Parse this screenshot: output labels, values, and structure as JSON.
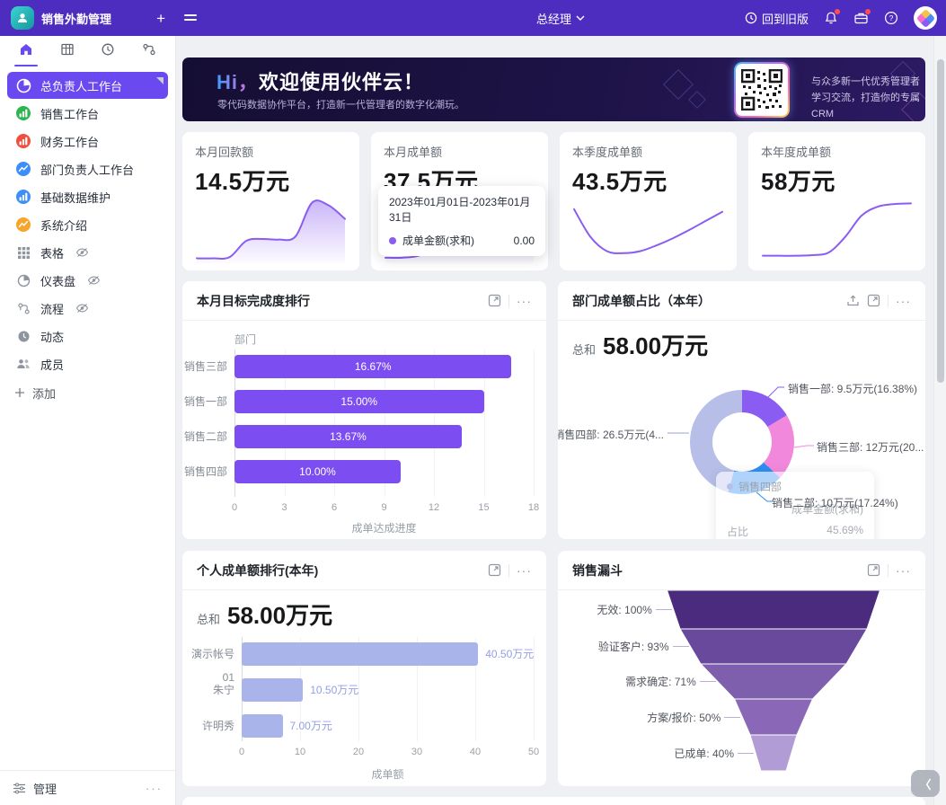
{
  "colors": {
    "topbar": "#4c2dbf",
    "accent": "#6a4af0",
    "bar_purple": "#7c4df0",
    "periwinkle": "#a9b5ea",
    "spark": "#8a5cf0",
    "funnel": [
      "#4a2b7e",
      "#69499c",
      "#7e5fad",
      "#8a67b7",
      "#b29cd6"
    ]
  },
  "topbar": {
    "app_title": "销售外勤管理",
    "plus_label": "+",
    "role": "总经理",
    "back_label": "回到旧版"
  },
  "sidebar": {
    "tabs": [
      {
        "name": "home",
        "active": true
      },
      {
        "name": "table"
      },
      {
        "name": "clock"
      },
      {
        "name": "flow"
      }
    ],
    "items": [
      {
        "label": "总负责人工作台",
        "icon": "pie-white",
        "color": "#6a4af0",
        "active": true
      },
      {
        "label": "销售工作台",
        "icon": "bars",
        "color": "#2fb44f"
      },
      {
        "label": "财务工作台",
        "icon": "bars",
        "color": "#f04f3e"
      },
      {
        "label": "部门负责人工作台",
        "icon": "zigzag",
        "color": "#3e8ef7"
      },
      {
        "label": "基础数据维护",
        "icon": "bars",
        "color": "#3e8ef7"
      },
      {
        "label": "系统介绍",
        "icon": "zigzag",
        "color": "#f7a52d"
      },
      {
        "label": "表格",
        "icon": "grid",
        "gray": true,
        "eye": true
      },
      {
        "label": "仪表盘",
        "icon": "gauge",
        "gray": true,
        "eye": true
      },
      {
        "label": "流程",
        "icon": "flow",
        "gray": true,
        "eye": true
      },
      {
        "label": "动态",
        "icon": "clock",
        "gray": true
      },
      {
        "label": "成员",
        "icon": "users",
        "gray": true
      }
    ],
    "add_label": "添加",
    "manage_label": "管理"
  },
  "banner": {
    "title_hi": "Hi，",
    "title_rest": "欢迎使用伙伴云！",
    "subtitle": "零代码数据协作平台，打造新一代管理者的数字化潮玩。",
    "qr_caption_line1": "与众多新一代优秀管理者",
    "qr_caption_line2": "学习交流，打造你的专属CRM"
  },
  "stat_cards": [
    {
      "title": "本月回款额",
      "value": "14.5万元",
      "spark_type": "area",
      "spark": [
        0.2,
        0.2,
        0.4,
        2.9,
        3.2,
        3.1,
        3.6,
        8.8,
        8.4,
        6.3
      ]
    },
    {
      "title": "本月成单额",
      "value": "37.5万元",
      "spark_type": "area",
      "spark": [
        0.3,
        0.3,
        0.6,
        1.8,
        2.6,
        2.9,
        2.7,
        2.2,
        2.6,
        8.5
      ],
      "tooltip": {
        "date_range": "2023年01月01日-2023年01月31日",
        "series_label": "成单金额(求和)",
        "series_value": "0.00"
      }
    },
    {
      "title": "本季度成单额",
      "value": "43.5万元",
      "spark_type": "line",
      "spark": [
        7.8,
        3.5,
        1.3,
        1.0,
        1.3,
        2.2,
        3.3,
        4.6,
        6.0,
        7.4
      ]
    },
    {
      "title": "本年度成单额",
      "value": "58万元",
      "spark_type": "line",
      "spark": [
        0.6,
        0.6,
        0.6,
        0.7,
        1.1,
        3.5,
        6.8,
        8.2,
        8.6,
        8.7
      ]
    }
  ],
  "chart_data": [
    {
      "id": "monthly_target_ranking",
      "type": "bar",
      "orientation": "horizontal",
      "title": "本月目标完成度排行",
      "ylabel": "部门",
      "xlabel": "成单达成进度",
      "categories": [
        "销售三部",
        "销售一部",
        "销售二部",
        "销售四部"
      ],
      "values": [
        16.67,
        15.0,
        13.67,
        10.0
      ],
      "bar_labels": [
        "16.67%",
        "15.00%",
        "13.67%",
        "10.00%"
      ],
      "xlim": [
        0,
        18
      ],
      "xticks": [
        0,
        3,
        6,
        9,
        12,
        15,
        18
      ],
      "bar_color": "#7c4df0",
      "grid": true
    },
    {
      "id": "dept_share_donut",
      "type": "pie",
      "title": "部门成单额占比（本年）",
      "total_label": "总和",
      "total_value": "58.00万元",
      "slices": [
        {
          "name": "销售一部",
          "value_label": "9.5万元",
          "pct": 16.38,
          "callout": "销售一部: 9.5万元(16.38%)",
          "color": "#8b5cf2"
        },
        {
          "name": "销售三部",
          "value_label": "12万元",
          "pct": 20.69,
          "callout": "销售三部: 12万元(20....",
          "color": "#f288dc"
        },
        {
          "name": "销售二部",
          "value_label": "10万元",
          "pct": 17.24,
          "callout": "销售二部: 10万元(17.24%)",
          "color": "#2e8df2"
        },
        {
          "name": "销售四部",
          "value_label": "26.5万元",
          "pct": 45.69,
          "callout": "销售四部: 26.5万元(4...",
          "color": "#b7bfe9"
        }
      ],
      "tooltip": {
        "title": "销售四部",
        "row1_label": "成单金额(求和)",
        "row2_label": "占比",
        "row2_value": "45.69%"
      }
    },
    {
      "id": "personal_ranking",
      "type": "bar",
      "orientation": "horizontal",
      "title": "个人成单额排行(本年)",
      "total_label": "总和",
      "total_value": "58.00万元",
      "categories": [
        "演示帐号01",
        "朱宁",
        "许明秀"
      ],
      "values": [
        40.5,
        10.5,
        7
      ],
      "value_labels": [
        "40.50万元",
        "10.50万元",
        "7.00万元"
      ],
      "xlim": [
        0,
        50
      ],
      "xticks": [
        0,
        10,
        20,
        30,
        40,
        50
      ],
      "xlabel": "成单额",
      "bar_color": "#a9b5ea",
      "grid": true
    },
    {
      "id": "sales_funnel",
      "type": "funnel",
      "title": "销售漏斗",
      "stages": [
        {
          "label": "无效: 100%",
          "pct": 100
        },
        {
          "label": "验证客户: 93%",
          "pct": 93
        },
        {
          "label": "需求确定: 71%",
          "pct": 71
        },
        {
          "label": "方案/报价: 50%",
          "pct": 50
        },
        {
          "label": "已成单: 40%",
          "pct": 40
        }
      ]
    }
  ],
  "floating": {
    "collapse_glyph": "〈"
  }
}
